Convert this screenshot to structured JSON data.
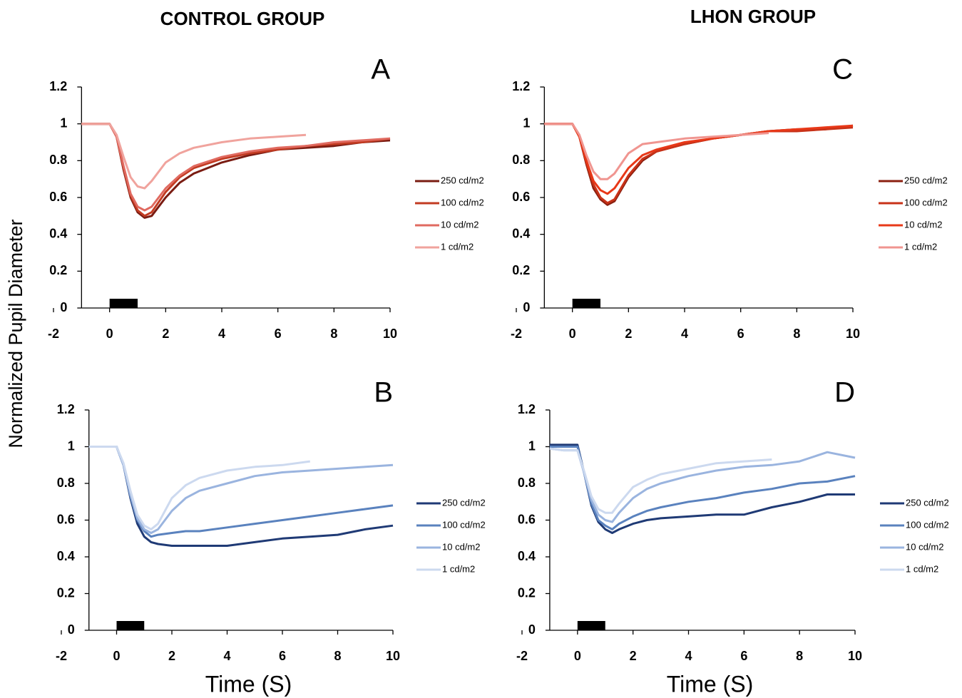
{
  "group_titles": [
    "CONTROL GROUP",
    "LHON GROUP"
  ],
  "ylabel": "Normalized Pupil Diameter",
  "chart_data": [
    {
      "type": "line",
      "title": "A",
      "stimulus": [
        0,
        1
      ],
      "x": [
        -1,
        -0.5,
        0,
        0.25,
        0.5,
        0.75,
        1,
        1.25,
        1.5,
        2,
        2.5,
        3,
        4,
        5,
        6,
        7,
        8,
        9,
        10
      ],
      "series": [
        {
          "name": "250 cd/m2",
          "color": "#7a1c12",
          "values": [
            1,
            1,
            1,
            0.93,
            0.75,
            0.6,
            0.52,
            0.49,
            0.5,
            0.6,
            0.68,
            0.73,
            0.79,
            0.83,
            0.86,
            0.87,
            0.88,
            0.9,
            0.91
          ]
        },
        {
          "name": "100 cd/m2",
          "color": "#c23b22",
          "values": [
            1,
            1,
            1,
            0.93,
            0.76,
            0.61,
            0.53,
            0.5,
            0.52,
            0.63,
            0.71,
            0.76,
            0.81,
            0.84,
            0.86,
            0.88,
            0.89,
            0.9,
            0.92
          ]
        },
        {
          "name": "10 cd/m2",
          "color": "#e06a60",
          "values": [
            1,
            1,
            1,
            0.93,
            0.77,
            0.62,
            0.55,
            0.53,
            0.55,
            0.65,
            0.72,
            0.77,
            0.82,
            0.85,
            0.87,
            0.88,
            0.9,
            0.91,
            0.92
          ]
        },
        {
          "name": "1 cd/m2",
          "color": "#f0a39d",
          "values": [
            1,
            1,
            1,
            0.94,
            0.82,
            0.71,
            0.66,
            0.65,
            0.69,
            0.79,
            0.84,
            0.87,
            0.9,
            0.92,
            0.93,
            0.94,
            null,
            null,
            null
          ]
        }
      ],
      "xlim": [
        -2,
        10
      ],
      "xticks": [
        -2,
        0,
        2,
        4,
        6,
        8,
        10
      ],
      "ylim": [
        0,
        1.2
      ],
      "yticks": [
        0,
        0.2,
        0.4,
        0.6,
        0.8,
        1,
        1.2
      ]
    },
    {
      "type": "line",
      "title": "B",
      "xlabel": "Time (S)",
      "stimulus": [
        0,
        1
      ],
      "x": [
        -1,
        -0.5,
        0,
        0.25,
        0.5,
        0.75,
        1,
        1.25,
        1.5,
        2,
        2.5,
        3,
        4,
        5,
        6,
        7,
        8,
        9,
        10
      ],
      "series": [
        {
          "name": "250 cd/m2",
          "color": "#1f3a75",
          "values": [
            1,
            1,
            1,
            0.9,
            0.72,
            0.58,
            0.51,
            0.48,
            0.47,
            0.46,
            0.46,
            0.46,
            0.46,
            0.48,
            0.5,
            0.51,
            0.52,
            0.55,
            0.57
          ]
        },
        {
          "name": "100 cd/m2",
          "color": "#5a82be",
          "values": [
            1,
            1,
            1,
            0.9,
            0.73,
            0.6,
            0.54,
            0.51,
            0.52,
            0.53,
            0.54,
            0.54,
            0.56,
            0.58,
            0.6,
            0.62,
            0.64,
            0.66,
            0.68
          ]
        },
        {
          "name": "10 cd/m2",
          "color": "#9ab4df",
          "values": [
            1,
            1,
            1,
            0.9,
            0.74,
            0.61,
            0.55,
            0.53,
            0.55,
            0.65,
            0.72,
            0.76,
            0.8,
            0.84,
            0.86,
            0.87,
            0.88,
            0.89,
            0.9
          ]
        },
        {
          "name": "1 cd/m2",
          "color": "#ccd9ef",
          "values": [
            1,
            1,
            1,
            0.91,
            0.76,
            0.63,
            0.57,
            0.55,
            0.58,
            0.72,
            0.79,
            0.83,
            0.87,
            0.89,
            0.9,
            0.92,
            null,
            null,
            null
          ]
        }
      ],
      "xlim": [
        -2,
        10
      ],
      "xticks": [
        -2,
        0,
        2,
        4,
        6,
        8,
        10
      ],
      "ylim": [
        0,
        1.2
      ],
      "yticks": [
        0,
        0.2,
        0.4,
        0.6,
        0.8,
        1,
        1.2
      ]
    },
    {
      "type": "line",
      "title": "C",
      "stimulus": [
        0,
        1
      ],
      "x": [
        -1,
        -0.5,
        0,
        0.25,
        0.5,
        0.75,
        1,
        1.25,
        1.5,
        2,
        2.5,
        3,
        4,
        5,
        6,
        7,
        8,
        9,
        10
      ],
      "series": [
        {
          "name": "250 cd/m2",
          "color": "#8b2010",
          "values": [
            1,
            1,
            1,
            0.93,
            0.78,
            0.65,
            0.59,
            0.56,
            0.58,
            0.71,
            0.8,
            0.85,
            0.89,
            0.92,
            0.94,
            0.96,
            0.97,
            0.97,
            0.99
          ]
        },
        {
          "name": "100 cd/m2",
          "color": "#c83218",
          "values": [
            1,
            1,
            1,
            0.93,
            0.79,
            0.67,
            0.6,
            0.57,
            0.59,
            0.72,
            0.81,
            0.85,
            0.89,
            0.92,
            0.94,
            0.96,
            0.96,
            0.97,
            0.98
          ]
        },
        {
          "name": "10 cd/m2",
          "color": "#e83818",
          "values": [
            1,
            1,
            1,
            0.93,
            0.8,
            0.69,
            0.64,
            0.62,
            0.65,
            0.76,
            0.83,
            0.86,
            0.9,
            0.92,
            0.94,
            0.96,
            0.97,
            0.98,
            0.99
          ]
        },
        {
          "name": "1 cd/m2",
          "color": "#f09590",
          "values": [
            1,
            1,
            1,
            0.94,
            0.83,
            0.74,
            0.7,
            0.7,
            0.73,
            0.84,
            0.89,
            0.9,
            0.92,
            0.93,
            0.94,
            0.95,
            null,
            null,
            null
          ]
        }
      ],
      "xlim": [
        -2,
        10
      ],
      "xticks": [
        -2,
        0,
        2,
        4,
        6,
        8,
        10
      ],
      "ylim": [
        0,
        1.2
      ],
      "yticks": [
        0,
        0.2,
        0.4,
        0.6,
        0.8,
        1,
        1.2
      ]
    },
    {
      "type": "line",
      "title": "D",
      "xlabel": "Time (S)",
      "stimulus": [
        0,
        1
      ],
      "x": [
        -1,
        -0.5,
        0,
        0.25,
        0.5,
        0.75,
        1,
        1.25,
        1.5,
        2,
        2.5,
        3,
        4,
        5,
        6,
        7,
        8,
        9,
        10
      ],
      "series": [
        {
          "name": "250 cd/m2",
          "color": "#1f3a75",
          "values": [
            1.01,
            1.01,
            1.01,
            0.85,
            0.68,
            0.59,
            0.55,
            0.53,
            0.55,
            0.58,
            0.6,
            0.61,
            0.62,
            0.63,
            0.63,
            0.67,
            0.7,
            0.74,
            0.74
          ]
        },
        {
          "name": "100 cd/m2",
          "color": "#5a82be",
          "values": [
            1,
            1,
            1,
            0.85,
            0.69,
            0.6,
            0.57,
            0.55,
            0.58,
            0.62,
            0.65,
            0.67,
            0.7,
            0.72,
            0.75,
            0.77,
            0.8,
            0.81,
            0.84
          ]
        },
        {
          "name": "10 cd/m2",
          "color": "#9ab4df",
          "values": [
            0.99,
            0.98,
            0.98,
            0.85,
            0.71,
            0.63,
            0.6,
            0.59,
            0.64,
            0.72,
            0.77,
            0.8,
            0.84,
            0.87,
            0.89,
            0.9,
            0.92,
            0.97,
            0.94
          ]
        },
        {
          "name": "1 cd/m2",
          "color": "#ccd9ef",
          "values": [
            0.99,
            0.98,
            0.98,
            0.86,
            0.73,
            0.66,
            0.64,
            0.64,
            0.69,
            0.78,
            0.82,
            0.85,
            0.88,
            0.91,
            0.92,
            0.93,
            null,
            null,
            null
          ]
        }
      ],
      "xlim": [
        -2,
        10
      ],
      "xticks": [
        -2,
        0,
        2,
        4,
        6,
        8,
        10
      ],
      "ylim": [
        0,
        1.2
      ],
      "yticks": [
        0,
        0.2,
        0.4,
        0.6,
        0.8,
        1,
        1.2
      ]
    }
  ]
}
